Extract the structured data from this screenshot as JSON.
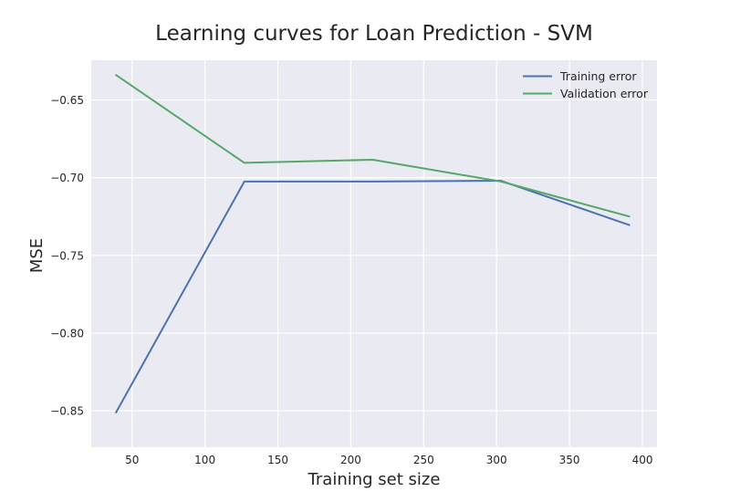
{
  "chart_data": {
    "type": "line",
    "title": "Learning curves for Loan Prediction - SVM",
    "xlabel": "Training set size",
    "ylabel": "MSE",
    "xlim": [
      22,
      410
    ],
    "ylim": [
      -0.8734,
      -0.6245
    ],
    "xticks": [
      50,
      100,
      150,
      200,
      250,
      300,
      350,
      400
    ],
    "xtick_labels": [
      "50",
      "100",
      "150",
      "200",
      "250",
      "300",
      "350",
      "400"
    ],
    "yticks": [
      -0.65,
      -0.7,
      -0.75,
      -0.8,
      -0.85
    ],
    "ytick_labels": [
      "−0.65",
      "−0.70",
      "−0.75",
      "−0.80",
      "−0.85"
    ],
    "grid": true,
    "legend": "top-right",
    "series": [
      {
        "name": "Training error",
        "color": "#4c72b0",
        "x": [
          39,
          127,
          215,
          303,
          391
        ],
        "y": [
          -0.851,
          -0.7025,
          -0.7025,
          -0.702,
          -0.7305
        ]
      },
      {
        "name": "Validation error",
        "color": "#55a868",
        "x": [
          39,
          127,
          215,
          303,
          391
        ],
        "y": [
          -0.634,
          -0.6905,
          -0.6885,
          -0.7025,
          -0.725
        ]
      }
    ]
  },
  "colors": {
    "plot_background": "#eaeaf2",
    "grid": "#ffffff",
    "text": "#262626"
  }
}
